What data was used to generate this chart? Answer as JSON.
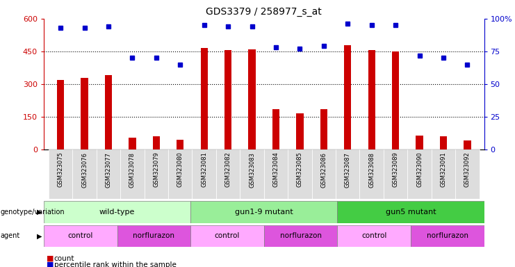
{
  "title": "GDS3379 / 258977_s_at",
  "samples": [
    "GSM323075",
    "GSM323076",
    "GSM323077",
    "GSM323078",
    "GSM323079",
    "GSM323080",
    "GSM323081",
    "GSM323082",
    "GSM323083",
    "GSM323084",
    "GSM323085",
    "GSM323086",
    "GSM323087",
    "GSM323088",
    "GSM323089",
    "GSM323090",
    "GSM323091",
    "GSM323092"
  ],
  "counts": [
    320,
    330,
    340,
    55,
    60,
    45,
    465,
    455,
    460,
    185,
    165,
    185,
    480,
    455,
    450,
    65,
    60,
    40
  ],
  "percentile_ranks": [
    93,
    93,
    94,
    70,
    70,
    65,
    95,
    94,
    94,
    78,
    77,
    79,
    96,
    95,
    95,
    72,
    70,
    65
  ],
  "bar_color": "#cc0000",
  "dot_color": "#0000cc",
  "ylim_left": [
    0,
    600
  ],
  "ylim_right": [
    0,
    100
  ],
  "yticks_left": [
    0,
    150,
    300,
    450,
    600
  ],
  "yticks_right": [
    0,
    25,
    50,
    75,
    100
  ],
  "ytick_labels_left": [
    "0",
    "150",
    "300",
    "450",
    "600"
  ],
  "ytick_labels_right": [
    "0",
    "25",
    "50",
    "75",
    "100%"
  ],
  "genotype_groups": [
    {
      "label": "wild-type",
      "start": 0,
      "end": 6,
      "color": "#ccffcc"
    },
    {
      "label": "gun1-9 mutant",
      "start": 6,
      "end": 12,
      "color": "#99ee99"
    },
    {
      "label": "gun5 mutant",
      "start": 12,
      "end": 18,
      "color": "#44cc44"
    }
  ],
  "agent_groups": [
    {
      "label": "control",
      "start": 0,
      "end": 3,
      "color": "#ffaaff"
    },
    {
      "label": "norflurazon",
      "start": 3,
      "end": 6,
      "color": "#dd55dd"
    },
    {
      "label": "control",
      "start": 6,
      "end": 9,
      "color": "#ffaaff"
    },
    {
      "label": "norflurazon",
      "start": 9,
      "end": 12,
      "color": "#dd55dd"
    },
    {
      "label": "control",
      "start": 12,
      "end": 15,
      "color": "#ffaaff"
    },
    {
      "label": "norflurazon",
      "start": 15,
      "end": 18,
      "color": "#dd55dd"
    }
  ],
  "legend_count_color": "#cc0000",
  "legend_dot_color": "#0000cc",
  "background_color": "#ffffff",
  "plot_bg_color": "#ffffff",
  "left_axis_color": "#cc0000",
  "right_axis_color": "#0000cc",
  "xtick_bg_color": "#dddddd"
}
